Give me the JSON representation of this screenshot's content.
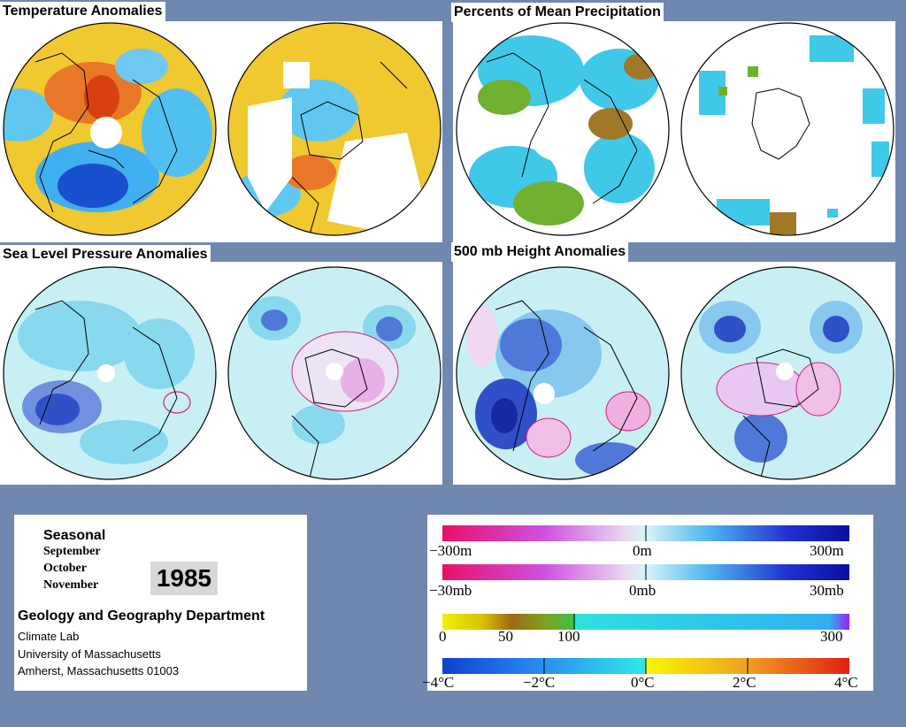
{
  "panels": {
    "temperature": {
      "title": "Temperature Anomalies"
    },
    "precipitation": {
      "title": "Percents of Mean Precipitation"
    },
    "slp": {
      "title": "Sea Level Pressure Anomalies"
    },
    "height500": {
      "title": "500 mb Height Anomalies"
    }
  },
  "info": {
    "period": "Seasonal",
    "months": [
      "September",
      "October",
      "November"
    ],
    "year": "1985",
    "department": "Geology and Geography Department",
    "lines": [
      "Climate Lab",
      "University of Massachusetts",
      "Amherst, Massachusetts 01003"
    ]
  },
  "legend": {
    "height_scale": {
      "labels": [
        "−300m",
        "0m",
        "300m"
      ],
      "min": -300,
      "max": 300,
      "unit": "m"
    },
    "pressure_scale": {
      "labels": [
        "−30mb",
        "0mb",
        "30mb"
      ],
      "min": -30,
      "max": 30,
      "unit": "mb"
    },
    "precip_scale": {
      "labels": [
        "0",
        "50",
        "100",
        "300"
      ],
      "min": 0,
      "max": 300
    },
    "temperature_scale": {
      "labels": [
        "−4°C",
        "−2°C",
        "0°C",
        "2°C",
        "4°C"
      ],
      "min": -4,
      "max": 4,
      "unit": "°C"
    }
  },
  "colors": {
    "background": "#7088b0",
    "temp_warm": "#f0c020",
    "temp_hot": "#e04010",
    "temp_cool": "#40c0f0",
    "temp_cold": "#1040d0",
    "precip_dry": "#a07020",
    "precip_green": "#60b030",
    "precip_wet": "#20c0e0",
    "slp_low": "#3050d0",
    "slp_base": "#b0e8f0",
    "slp_high": "#e8a0e0",
    "contour_neg": "#003080",
    "contour_pos": "#d02080"
  }
}
